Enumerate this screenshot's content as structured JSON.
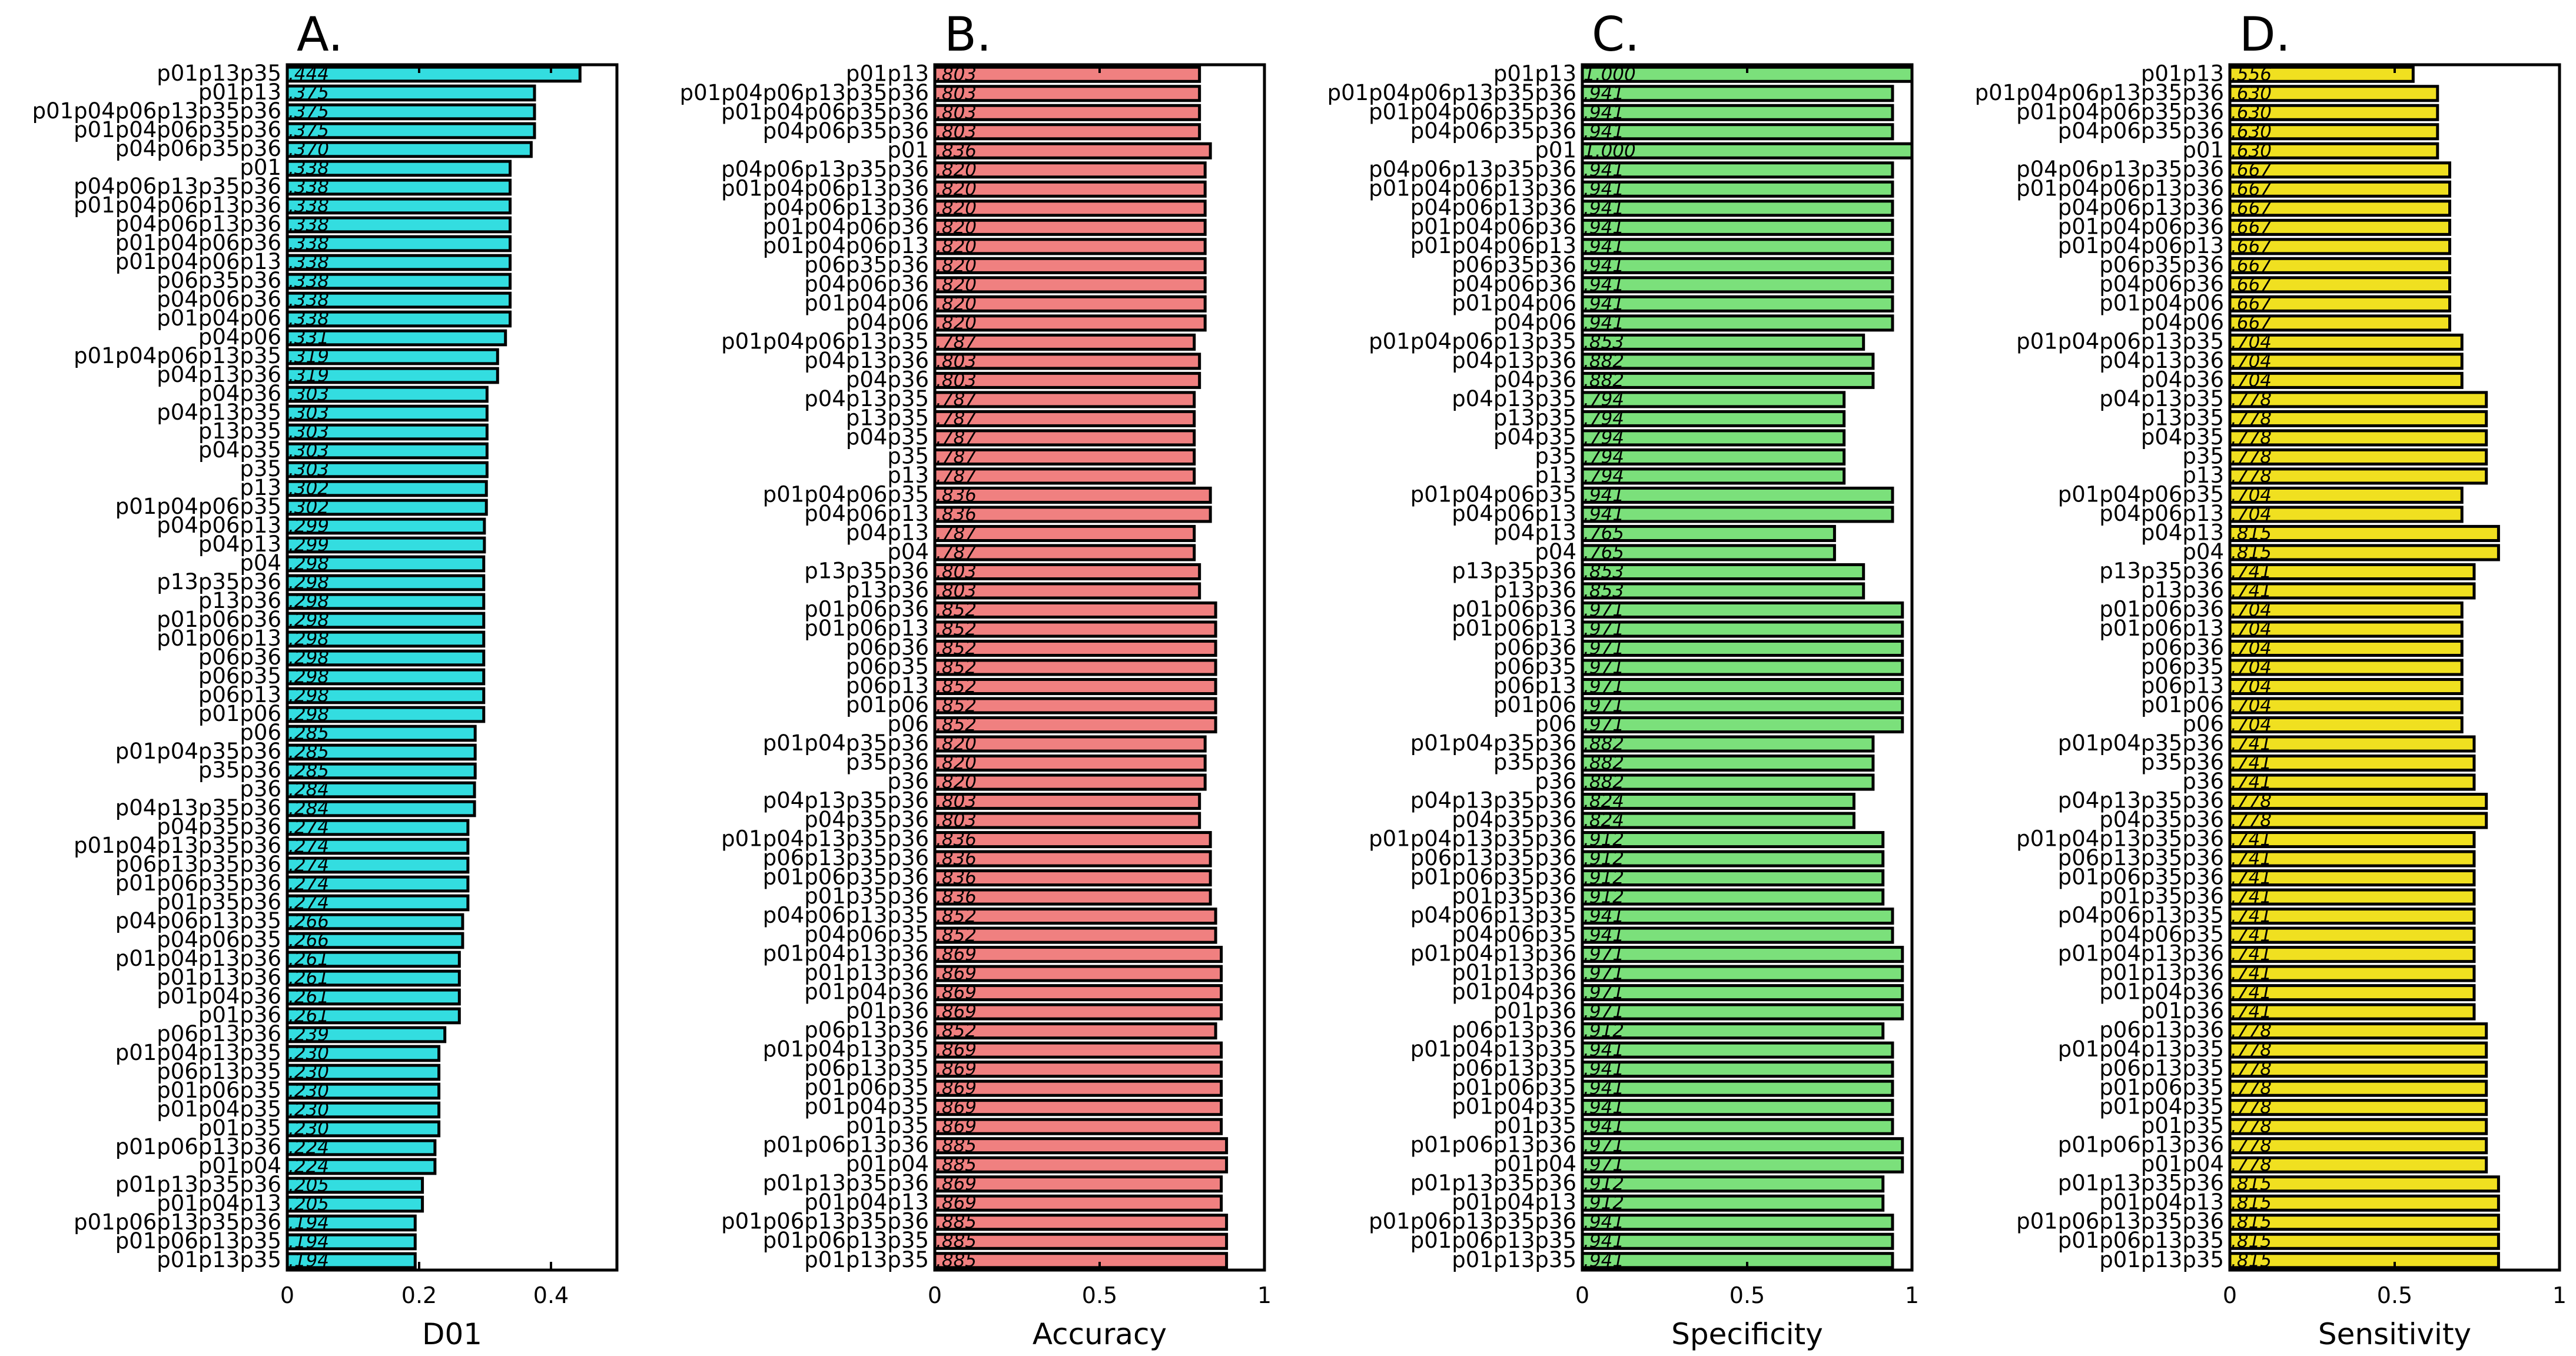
{
  "chart_data": [
    {
      "type": "bar",
      "orientation": "horizontal",
      "panel": "A.",
      "xlabel": "D01",
      "xlim": [
        0,
        0.5
      ],
      "xticks": [
        "0",
        "0.2",
        "0.4"
      ],
      "xtick_values": [
        0,
        0.2,
        0.4
      ],
      "color": "#33dde0",
      "categories": [
        "p01p13p35",
        "p01p13",
        "p01p04p06p13p35p36",
        "p01p04p06p35p36",
        "p04p06p35p36",
        "p01",
        "p04p06p13p35p36",
        "p01p04p06p13p36",
        "p04p06p13p36",
        "p01p04p06p36",
        "p01p04p06p13",
        "p06p35p36",
        "p04p06p36",
        "p01p04p06",
        "p04p06",
        "p01p04p06p13p35",
        "p04p13p36",
        "p04p36",
        "p04p13p35",
        "p13p35",
        "p04p35",
        "p35",
        "p13",
        "p01p04p06p35",
        "p04p06p13",
        "p04p13",
        "p04",
        "p13p35p36",
        "p13p36",
        "p01p06p36",
        "p01p06p13",
        "p06p36",
        "p06p35",
        "p06p13",
        "p01p06",
        "p06",
        "p01p04p35p36",
        "p35p36",
        "p36",
        "p04p13p35p36",
        "p04p35p36",
        "p01p04p13p35p36",
        "p06p13p35p36",
        "p01p06p35p36",
        "p01p35p36",
        "p04p06p13p35",
        "p04p06p35",
        "p01p04p13p36",
        "p01p13p36",
        "p01p04p36",
        "p01p36",
        "p06p13p36",
        "p01p04p13p35",
        "p06p13p35",
        "p01p06p35",
        "p01p04p35",
        "p01p35",
        "p01p06p13p36",
        "p01p04",
        "p01p13p35p36",
        "p01p04p13",
        "p01p06p13p35p36",
        "p01p06p13p35",
        "p01p13p35"
      ],
      "value_labels": [
        ".444",
        ".375",
        ".375",
        ".375",
        ".370",
        ".338",
        ".338",
        ".338",
        ".338",
        ".338",
        ".338",
        ".338",
        ".338",
        ".338",
        ".331",
        ".319",
        ".319",
        ".303",
        ".303",
        ".303",
        ".303",
        ".303",
        ".302",
        ".302",
        ".299",
        ".299",
        ".298",
        ".298",
        ".298",
        ".298",
        ".298",
        ".298",
        ".298",
        ".298",
        ".298",
        ".285",
        ".285",
        ".285",
        ".284",
        ".284",
        ".274",
        ".274",
        ".274",
        ".274",
        ".274",
        ".266",
        ".266",
        ".261",
        ".261",
        ".261",
        ".261",
        ".239",
        ".230",
        ".230",
        ".230",
        ".230",
        ".230",
        ".224",
        ".224",
        ".205",
        ".205",
        ".194",
        ".194",
        ".194"
      ],
      "values": [
        0.444,
        0.375,
        0.375,
        0.375,
        0.37,
        0.338,
        0.338,
        0.338,
        0.338,
        0.338,
        0.338,
        0.338,
        0.338,
        0.338,
        0.331,
        0.319,
        0.319,
        0.303,
        0.303,
        0.303,
        0.303,
        0.303,
        0.302,
        0.302,
        0.299,
        0.299,
        0.298,
        0.298,
        0.298,
        0.298,
        0.298,
        0.298,
        0.298,
        0.298,
        0.298,
        0.285,
        0.285,
        0.285,
        0.284,
        0.284,
        0.274,
        0.274,
        0.274,
        0.274,
        0.274,
        0.266,
        0.266,
        0.261,
        0.261,
        0.261,
        0.261,
        0.239,
        0.23,
        0.23,
        0.23,
        0.23,
        0.23,
        0.224,
        0.224,
        0.205,
        0.205,
        0.194,
        0.194,
        0.194
      ]
    },
    {
      "type": "bar",
      "orientation": "horizontal",
      "panel": "B.",
      "xlabel": "Accuracy",
      "xlim": [
        0,
        1
      ],
      "xticks": [
        "0",
        "0.5",
        "1"
      ],
      "xtick_values": [
        0,
        0.5,
        1
      ],
      "color": "#f08080",
      "categories": [
        "p01p13",
        "p01p04p06p13p35p36",
        "p01p04p06p35p36",
        "p04p06p35p36",
        "p01",
        "p04p06p13p35p36",
        "p01p04p06p13p36",
        "p04p06p13p36",
        "p01p04p06p36",
        "p01p04p06p13",
        "p06p35p36",
        "p04p06p36",
        "p01p04p06",
        "p04p06",
        "p01p04p06p13p35",
        "p04p13p36",
        "p04p36",
        "p04p13p35",
        "p13p35",
        "p04p35",
        "p35",
        "p13",
        "p01p04p06p35",
        "p04p06p13",
        "p04p13",
        "p04",
        "p13p35p36",
        "p13p36",
        "p01p06p36",
        "p01p06p13",
        "p06p36",
        "p06p35",
        "p06p13",
        "p01p06",
        "p06",
        "p01p04p35p36",
        "p35p36",
        "p36",
        "p04p13p35p36",
        "p04p35p36",
        "p01p04p13p35p36",
        "p06p13p35p36",
        "p01p06p35p36",
        "p01p35p36",
        "p04p06p13p35",
        "p04p06p35",
        "p01p04p13p36",
        "p01p13p36",
        "p01p04p36",
        "p01p36",
        "p06p13p36",
        "p01p04p13p35",
        "p06p13p35",
        "p01p06p35",
        "p01p04p35",
        "p01p35",
        "p01p06p13p36",
        "p01p04",
        "p01p13p35p36",
        "p01p04p13",
        "p01p06p13p35p36",
        "p01p06p13p35",
        "p01p13p35"
      ],
      "value_labels": [
        ".803",
        ".803",
        ".803",
        ".803",
        ".836",
        ".820",
        ".820",
        ".820",
        ".820",
        ".820",
        ".820",
        ".820",
        ".820",
        ".820",
        ".787",
        ".803",
        ".803",
        ".787",
        ".787",
        ".787",
        ".787",
        ".787",
        ".836",
        ".836",
        ".787",
        ".787",
        ".803",
        ".803",
        ".852",
        ".852",
        ".852",
        ".852",
        ".852",
        ".852",
        ".852",
        ".820",
        ".820",
        ".820",
        ".803",
        ".803",
        ".836",
        ".836",
        ".836",
        ".836",
        ".852",
        ".852",
        ".869",
        ".869",
        ".869",
        ".869",
        ".852",
        ".869",
        ".869",
        ".869",
        ".869",
        ".869",
        ".885",
        ".885",
        ".869",
        ".869",
        ".885",
        ".885",
        ".885"
      ],
      "values": [
        0.803,
        0.803,
        0.803,
        0.803,
        0.836,
        0.82,
        0.82,
        0.82,
        0.82,
        0.82,
        0.82,
        0.82,
        0.82,
        0.82,
        0.787,
        0.803,
        0.803,
        0.787,
        0.787,
        0.787,
        0.787,
        0.787,
        0.836,
        0.836,
        0.787,
        0.787,
        0.803,
        0.803,
        0.852,
        0.852,
        0.852,
        0.852,
        0.852,
        0.852,
        0.852,
        0.82,
        0.82,
        0.82,
        0.803,
        0.803,
        0.836,
        0.836,
        0.836,
        0.836,
        0.852,
        0.852,
        0.869,
        0.869,
        0.869,
        0.869,
        0.852,
        0.869,
        0.869,
        0.869,
        0.869,
        0.869,
        0.885,
        0.885,
        0.869,
        0.869,
        0.885,
        0.885,
        0.885
      ]
    },
    {
      "type": "bar",
      "orientation": "horizontal",
      "panel": "C.",
      "xlabel": "Specificity",
      "xlim": [
        0,
        1
      ],
      "xticks": [
        "0",
        "0.5",
        "1"
      ],
      "xtick_values": [
        0,
        0.5,
        1
      ],
      "color": "#7be07b",
      "categories": [
        "p01p13",
        "p01p04p06p13p35p36",
        "p01p04p06p35p36",
        "p04p06p35p36",
        "p01",
        "p04p06p13p35p36",
        "p01p04p06p13p36",
        "p04p06p13p36",
        "p01p04p06p36",
        "p01p04p06p13",
        "p06p35p36",
        "p04p06p36",
        "p01p04p06",
        "p04p06",
        "p01p04p06p13p35",
        "p04p13p36",
        "p04p36",
        "p04p13p35",
        "p13p35",
        "p04p35",
        "p35",
        "p13",
        "p01p04p06p35",
        "p04p06p13",
        "p04p13",
        "p04",
        "p13p35p36",
        "p13p36",
        "p01p06p36",
        "p01p06p13",
        "p06p36",
        "p06p35",
        "p06p13",
        "p01p06",
        "p06",
        "p01p04p35p36",
        "p35p36",
        "p36",
        "p04p13p35p36",
        "p04p35p36",
        "p01p04p13p35p36",
        "p06p13p35p36",
        "p01p06p35p36",
        "p01p35p36",
        "p04p06p13p35",
        "p04p06p35",
        "p01p04p13p36",
        "p01p13p36",
        "p01p04p36",
        "p01p36",
        "p06p13p36",
        "p01p04p13p35",
        "p06p13p35",
        "p01p06p35",
        "p01p04p35",
        "p01p35",
        "p01p06p13p36",
        "p01p04",
        "p01p13p35p36",
        "p01p04p13",
        "p01p06p13p35p36",
        "p01p06p13p35",
        "p01p13p35"
      ],
      "value_labels": [
        "1.000",
        ".941",
        ".941",
        ".941",
        "1.000",
        ".941",
        ".941",
        ".941",
        ".941",
        ".941",
        ".941",
        ".941",
        ".941",
        ".941",
        ".853",
        ".882",
        ".882",
        ".794",
        ".794",
        ".794",
        ".794",
        ".794",
        ".941",
        ".941",
        ".765",
        ".765",
        ".853",
        ".853",
        ".971",
        ".971",
        ".971",
        ".971",
        ".971",
        ".971",
        ".971",
        ".882",
        ".882",
        ".882",
        ".824",
        ".824",
        ".912",
        ".912",
        ".912",
        ".912",
        ".941",
        ".941",
        ".971",
        ".971",
        ".971",
        ".971",
        ".912",
        ".941",
        ".941",
        ".941",
        ".941",
        ".941",
        ".971",
        ".971",
        ".912",
        ".912",
        ".941",
        ".941",
        ".941"
      ],
      "values": [
        1.0,
        0.941,
        0.941,
        0.941,
        1.0,
        0.941,
        0.941,
        0.941,
        0.941,
        0.941,
        0.941,
        0.941,
        0.941,
        0.941,
        0.853,
        0.882,
        0.882,
        0.794,
        0.794,
        0.794,
        0.794,
        0.794,
        0.941,
        0.941,
        0.765,
        0.765,
        0.853,
        0.853,
        0.971,
        0.971,
        0.971,
        0.971,
        0.971,
        0.971,
        0.971,
        0.882,
        0.882,
        0.882,
        0.824,
        0.824,
        0.912,
        0.912,
        0.912,
        0.912,
        0.941,
        0.941,
        0.971,
        0.971,
        0.971,
        0.971,
        0.912,
        0.941,
        0.941,
        0.941,
        0.941,
        0.941,
        0.971,
        0.971,
        0.912,
        0.912,
        0.941,
        0.941,
        0.941
      ]
    },
    {
      "type": "bar",
      "orientation": "horizontal",
      "panel": "D.",
      "xlabel": "Sensitivity",
      "xlim": [
        0,
        1
      ],
      "xticks": [
        "0",
        "0.5",
        "1"
      ],
      "xtick_values": [
        0,
        0.5,
        1
      ],
      "color": "#f0e020",
      "categories": [
        "p01p13",
        "p01p04p06p13p35p36",
        "p01p04p06p35p36",
        "p04p06p35p36",
        "p01",
        "p04p06p13p35p36",
        "p01p04p06p13p36",
        "p04p06p13p36",
        "p01p04p06p36",
        "p01p04p06p13",
        "p06p35p36",
        "p04p06p36",
        "p01p04p06",
        "p04p06",
        "p01p04p06p13p35",
        "p04p13p36",
        "p04p36",
        "p04p13p35",
        "p13p35",
        "p04p35",
        "p35",
        "p13",
        "p01p04p06p35",
        "p04p06p13",
        "p04p13",
        "p04",
        "p13p35p36",
        "p13p36",
        "p01p06p36",
        "p01p06p13",
        "p06p36",
        "p06p35",
        "p06p13",
        "p01p06",
        "p06",
        "p01p04p35p36",
        "p35p36",
        "p36",
        "p04p13p35p36",
        "p04p35p36",
        "p01p04p13p35p36",
        "p06p13p35p36",
        "p01p06p35p36",
        "p01p35p36",
        "p04p06p13p35",
        "p04p06p35",
        "p01p04p13p36",
        "p01p13p36",
        "p01p04p36",
        "p01p36",
        "p06p13p36",
        "p01p04p13p35",
        "p06p13p35",
        "p01p06p35",
        "p01p04p35",
        "p01p35",
        "p01p06p13p36",
        "p01p04",
        "p01p13p35p36",
        "p01p04p13",
        "p01p06p13p35p36",
        "p01p06p13p35",
        "p01p13p35"
      ],
      "value_labels": [
        ".556",
        ".630",
        ".630",
        ".630",
        ".630",
        ".667",
        ".667",
        ".667",
        ".667",
        ".667",
        ".667",
        ".667",
        ".667",
        ".667",
        ".704",
        ".704",
        ".704",
        ".778",
        ".778",
        ".778",
        ".778",
        ".778",
        ".704",
        ".704",
        ".815",
        ".815",
        ".741",
        ".741",
        ".704",
        ".704",
        ".704",
        ".704",
        ".704",
        ".704",
        ".704",
        ".741",
        ".741",
        ".741",
        ".778",
        ".778",
        ".741",
        ".741",
        ".741",
        ".741",
        ".741",
        ".741",
        ".741",
        ".741",
        ".741",
        ".741",
        ".778",
        ".778",
        ".778",
        ".778",
        ".778",
        ".778",
        ".778",
        ".778",
        ".815",
        ".815",
        ".815",
        ".815",
        ".815"
      ],
      "values": [
        0.556,
        0.63,
        0.63,
        0.63,
        0.63,
        0.667,
        0.667,
        0.667,
        0.667,
        0.667,
        0.667,
        0.667,
        0.667,
        0.667,
        0.704,
        0.704,
        0.704,
        0.778,
        0.778,
        0.778,
        0.778,
        0.778,
        0.704,
        0.704,
        0.815,
        0.815,
        0.741,
        0.741,
        0.704,
        0.704,
        0.704,
        0.704,
        0.704,
        0.704,
        0.704,
        0.741,
        0.741,
        0.741,
        0.778,
        0.778,
        0.741,
        0.741,
        0.741,
        0.741,
        0.741,
        0.741,
        0.741,
        0.741,
        0.741,
        0.741,
        0.778,
        0.778,
        0.778,
        0.778,
        0.778,
        0.778,
        0.778,
        0.778,
        0.815,
        0.815,
        0.815,
        0.815,
        0.815
      ]
    }
  ]
}
